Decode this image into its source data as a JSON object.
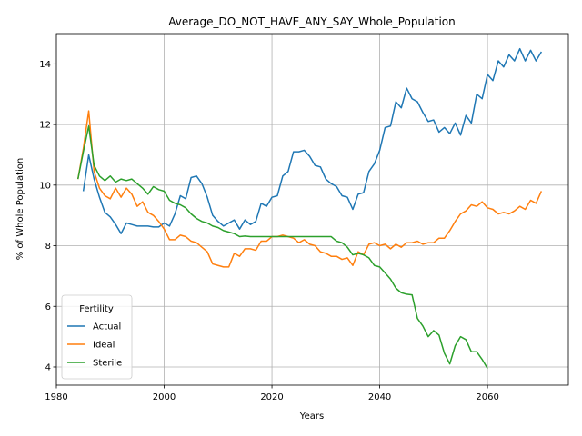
{
  "chart_data": {
    "type": "line",
    "title": "Average_DO_NOT_HAVE_ANY_SAY_Whole_Population",
    "xlabel": "Years",
    "ylabel": "% of Whole Population",
    "xlim": [
      1980,
      2075
    ],
    "ylim": [
      3.4,
      15.0
    ],
    "xticks": [
      1980,
      2000,
      2020,
      2040,
      2060
    ],
    "yticks": [
      4,
      6,
      8,
      10,
      12,
      14
    ],
    "grid": true,
    "legend": {
      "title": "Fertility",
      "placement": "lower-left"
    },
    "series": [
      {
        "name": "Actual",
        "color": "#1f77b4",
        "x": [
          1985,
          1986,
          1987,
          1988,
          1989,
          1990,
          1991,
          1992,
          1993,
          1994,
          1995,
          1996,
          1997,
          1998,
          1999,
          2000,
          2001,
          2002,
          2003,
          2004,
          2005,
          2006,
          2007,
          2008,
          2009,
          2010,
          2011,
          2012,
          2013,
          2014,
          2015,
          2016,
          2017,
          2018,
          2019,
          2020,
          2021,
          2022,
          2023,
          2024,
          2025,
          2026,
          2027,
          2028,
          2029,
          2030,
          2031,
          2032,
          2033,
          2034,
          2035,
          2036,
          2037,
          2038,
          2039,
          2040,
          2041,
          2042,
          2043,
          2044,
          2045,
          2046,
          2047,
          2048,
          2049,
          2050,
          2051,
          2052,
          2053,
          2054,
          2055,
          2056,
          2057,
          2058,
          2059,
          2060,
          2061,
          2062,
          2063,
          2064,
          2065,
          2066,
          2067,
          2068,
          2069,
          2070
        ],
        "y": [
          9.8,
          11.0,
          10.2,
          9.6,
          9.1,
          8.95,
          8.7,
          8.4,
          8.75,
          8.7,
          8.65,
          8.65,
          8.65,
          8.62,
          8.62,
          8.75,
          8.65,
          9.05,
          9.65,
          9.55,
          10.25,
          10.3,
          10.05,
          9.6,
          9.0,
          8.8,
          8.65,
          8.75,
          8.85,
          8.55,
          8.85,
          8.7,
          8.8,
          9.4,
          9.3,
          9.6,
          9.65,
          10.3,
          10.45,
          11.1,
          11.1,
          11.15,
          10.95,
          10.65,
          10.6,
          10.2,
          10.05,
          9.95,
          9.65,
          9.6,
          9.2,
          9.7,
          9.75,
          10.45,
          10.7,
          11.15,
          11.9,
          11.95,
          12.75,
          12.55,
          13.2,
          12.85,
          12.75,
          12.4,
          12.1,
          12.15,
          11.75,
          11.9,
          11.7,
          12.05,
          11.65,
          12.3,
          12.05,
          13.0,
          12.85,
          13.65,
          13.45,
          14.1,
          13.9,
          14.3,
          14.1,
          14.5,
          14.1,
          14.45,
          14.1,
          14.4
        ]
      },
      {
        "name": "Ideal",
        "color": "#ff7f0e",
        "x": [
          1984,
          1985,
          1986,
          1987,
          1988,
          1989,
          1990,
          1991,
          1992,
          1993,
          1994,
          1995,
          1996,
          1997,
          1998,
          1999,
          2000,
          2001,
          2002,
          2003,
          2004,
          2005,
          2006,
          2007,
          2008,
          2009,
          2010,
          2011,
          2012,
          2013,
          2014,
          2015,
          2016,
          2017,
          2018,
          2019,
          2020,
          2021,
          2022,
          2023,
          2024,
          2025,
          2026,
          2027,
          2028,
          2029,
          2030,
          2031,
          2032,
          2033,
          2034,
          2035,
          2036,
          2037,
          2038,
          2039,
          2040,
          2041,
          2042,
          2043,
          2044,
          2045,
          2046,
          2047,
          2048,
          2049,
          2050,
          2051,
          2052,
          2053,
          2054,
          2055,
          2056,
          2057,
          2058,
          2059,
          2060,
          2061,
          2062,
          2063,
          2064,
          2065,
          2066,
          2067,
          2068,
          2069,
          2070
        ],
        "y": [
          10.2,
          11.2,
          12.45,
          10.45,
          9.9,
          9.65,
          9.55,
          9.9,
          9.6,
          9.9,
          9.7,
          9.3,
          9.45,
          9.1,
          9.0,
          8.8,
          8.55,
          8.2,
          8.2,
          8.35,
          8.3,
          8.15,
          8.1,
          7.95,
          7.8,
          7.4,
          7.35,
          7.3,
          7.3,
          7.75,
          7.65,
          7.9,
          7.9,
          7.85,
          8.15,
          8.15,
          8.3,
          8.3,
          8.35,
          8.3,
          8.25,
          8.1,
          8.2,
          8.05,
          8.0,
          7.8,
          7.75,
          7.65,
          7.65,
          7.55,
          7.6,
          7.35,
          7.8,
          7.7,
          8.05,
          8.1,
          8.0,
          8.05,
          7.9,
          8.05,
          7.95,
          8.1,
          8.1,
          8.15,
          8.05,
          8.1,
          8.1,
          8.25,
          8.25,
          8.5,
          8.8,
          9.05,
          9.15,
          9.35,
          9.3,
          9.45,
          9.25,
          9.2,
          9.05,
          9.1,
          9.05,
          9.15,
          9.3,
          9.2,
          9.5,
          9.4,
          9.8
        ]
      },
      {
        "name": "Sterile",
        "color": "#2ca02c",
        "x": [
          1984,
          1985,
          1986,
          1987,
          1988,
          1989,
          1990,
          1991,
          1992,
          1993,
          1994,
          1995,
          1996,
          1997,
          1998,
          1999,
          2000,
          2001,
          2002,
          2003,
          2004,
          2005,
          2006,
          2007,
          2008,
          2009,
          2010,
          2011,
          2012,
          2013,
          2014,
          2015,
          2016,
          2017,
          2018,
          2019,
          2020,
          2021,
          2022,
          2023,
          2024,
          2025,
          2026,
          2027,
          2028,
          2029,
          2030,
          2031,
          2032,
          2033,
          2034,
          2035,
          2036,
          2037,
          2038,
          2039,
          2040,
          2041,
          2042,
          2043,
          2044,
          2045,
          2046,
          2047,
          2048,
          2049,
          2050,
          2051,
          2052,
          2053,
          2054,
          2055,
          2056,
          2057,
          2058,
          2059,
          2060
        ],
        "y": [
          10.2,
          11.1,
          11.95,
          10.65,
          10.3,
          10.15,
          10.3,
          10.1,
          10.2,
          10.15,
          10.2,
          10.05,
          9.9,
          9.7,
          9.95,
          9.85,
          9.8,
          9.5,
          9.4,
          9.35,
          9.25,
          9.05,
          8.9,
          8.8,
          8.75,
          8.65,
          8.6,
          8.5,
          8.45,
          8.4,
          8.3,
          8.32,
          8.3,
          8.3,
          8.3,
          8.3,
          8.3,
          8.3,
          8.3,
          8.3,
          8.3,
          8.3,
          8.3,
          8.3,
          8.3,
          8.3,
          8.3,
          8.3,
          8.15,
          8.1,
          7.95,
          7.7,
          7.75,
          7.7,
          7.6,
          7.35,
          7.3,
          7.1,
          6.9,
          6.6,
          6.45,
          6.4,
          6.38,
          5.6,
          5.35,
          5.0,
          5.2,
          5.05,
          4.45,
          4.1,
          4.7,
          5.0,
          4.9,
          4.5,
          4.5,
          4.25,
          3.95
        ]
      }
    ]
  }
}
